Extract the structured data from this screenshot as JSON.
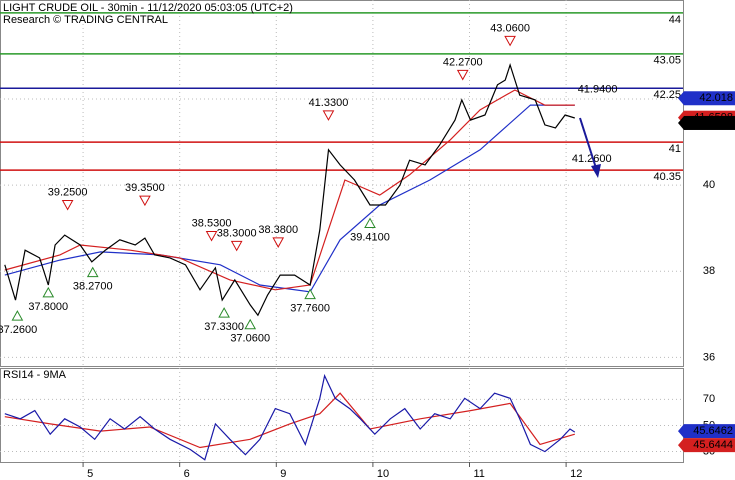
{
  "chart_data": [
    {
      "type": "line",
      "title": "LIGHT CRUDE OIL - 30min - 11/12/2020 05:03:05 (UTC+2)",
      "subtitle": "Research © TRADING CENTRAL",
      "xlim": [
        0.14,
        7.21
      ],
      "ylim": [
        35.8,
        44.3
      ],
      "yticks": [
        36,
        38,
        40,
        42
      ],
      "grid": true,
      "series": [
        {
          "color": "#2030c8",
          "x": [
            0.19,
            0.76,
            1.18,
            1.8,
            2.42,
            2.83,
            3.35,
            3.66,
            4.07,
            4.59,
            5.11,
            5.63,
            6.09
          ],
          "values": [
            37.91,
            38.26,
            38.45,
            38.38,
            38.15,
            37.68,
            37.52,
            38.73,
            39.54,
            40.12,
            40.82,
            41.86,
            41.86
          ]
        },
        {
          "color": "#d42020",
          "x": [
            0.19,
            0.76,
            0.97,
            1.49,
            2.0,
            2.52,
            2.99,
            3.35,
            3.71,
            4.07,
            4.38,
            4.8,
            5.11,
            5.47,
            5.78,
            6.09
          ],
          "values": [
            38.03,
            38.38,
            38.61,
            38.49,
            38.31,
            37.8,
            37.57,
            37.68,
            40.12,
            39.77,
            40.24,
            41.05,
            41.75,
            42.21,
            41.86,
            41.86
          ]
        },
        {
          "color": "#000000",
          "x": [
            0.19,
            0.3,
            0.4,
            0.55,
            0.64,
            0.71,
            0.81,
            0.97,
            1.09,
            1.23,
            1.38,
            1.54,
            1.64,
            1.74,
            1.9,
            2.06,
            2.21,
            2.37,
            2.44,
            2.57,
            2.73,
            2.81,
            2.91,
            3.04,
            3.19,
            3.35,
            3.45,
            3.54,
            3.66,
            3.81,
            3.97,
            4.13,
            4.28,
            4.38,
            4.54,
            4.69,
            4.85,
            4.92,
            5.01,
            5.16,
            5.29,
            5.37,
            5.42,
            5.52,
            5.68,
            5.78,
            5.89,
            5.99,
            6.09
          ],
          "values": [
            38.15,
            37.33,
            38.49,
            38.31,
            37.68,
            38.61,
            38.84,
            38.61,
            38.22,
            38.49,
            38.73,
            38.61,
            38.77,
            38.38,
            38.31,
            38.15,
            37.57,
            38.08,
            37.33,
            37.8,
            37.22,
            36.98,
            37.45,
            37.91,
            37.91,
            37.68,
            38.96,
            40.82,
            40.47,
            40.12,
            39.54,
            39.54,
            40.0,
            40.58,
            40.47,
            40.93,
            41.51,
            41.98,
            41.51,
            41.63,
            42.33,
            42.44,
            42.79,
            42.09,
            41.98,
            41.4,
            41.33,
            41.63,
            41.56
          ]
        }
      ],
      "levels": [
        {
          "value": 44,
          "color": "#2a9a2a"
        },
        {
          "value": 43.05,
          "color": "#2a9a2a"
        },
        {
          "value": 42.25,
          "color": "#1a1a9a"
        },
        {
          "value": 41,
          "color": "#d01010"
        },
        {
          "value": 40.35,
          "color": "#d01010"
        }
      ],
      "annotations": [
        {
          "x": 0.32,
          "value": 37.26,
          "label": "37.2600",
          "kind": "low"
        },
        {
          "x": 0.64,
          "value": 37.8,
          "label": "37.8000",
          "kind": "low"
        },
        {
          "x": 0.84,
          "value": 39.25,
          "label": "39.2500",
          "kind": "high"
        },
        {
          "x": 1.1,
          "value": 38.27,
          "label": "38.2700",
          "kind": "low"
        },
        {
          "x": 1.64,
          "value": 39.35,
          "label": "39.3500",
          "kind": "high"
        },
        {
          "x": 2.33,
          "value": 38.53,
          "label": "38.5300",
          "kind": "high"
        },
        {
          "x": 2.46,
          "value": 37.33,
          "label": "37.3300",
          "kind": "low"
        },
        {
          "x": 2.59,
          "value": 38.3,
          "label": "38.3000",
          "kind": "high"
        },
        {
          "x": 2.73,
          "value": 37.06,
          "label": "37.0600",
          "kind": "low"
        },
        {
          "x": 3.02,
          "value": 38.38,
          "label": "38.3800",
          "kind": "high"
        },
        {
          "x": 3.35,
          "value": 37.76,
          "label": "37.7600",
          "kind": "low"
        },
        {
          "x": 3.54,
          "value": 41.33,
          "label": "41.3300",
          "kind": "high"
        },
        {
          "x": 3.97,
          "value": 39.41,
          "label": "39.4100",
          "kind": "low"
        },
        {
          "x": 4.93,
          "value": 42.27,
          "label": "42.2700",
          "kind": "high"
        },
        {
          "x": 5.42,
          "value": 43.06,
          "label": "43.0600",
          "kind": "high"
        },
        {
          "x": 6.12,
          "value": 41.94,
          "label": "41.9400",
          "kind": "target-high"
        },
        {
          "x": 6.06,
          "value": 41.26,
          "label": "41.2600",
          "kind": "target-low"
        }
      ],
      "price_tags": [
        {
          "value": 42.018,
          "color": "#2030c8"
        },
        {
          "value": 41.6598,
          "color": "#d42020"
        },
        {
          "value": 41.63,
          "color": "#000000"
        }
      ]
    },
    {
      "type": "line",
      "title": "RSI14 - 9MA",
      "xlim": [
        0.14,
        7.21
      ],
      "ylim": [
        22,
        94
      ],
      "yticks": [
        30,
        50,
        70
      ],
      "grid": true,
      "xticks": [
        {
          "value": 1,
          "label": "5"
        },
        {
          "value": 2,
          "label": "6"
        },
        {
          "value": 3,
          "label": "9"
        },
        {
          "value": 4,
          "label": "10"
        },
        {
          "value": 5,
          "label": "11"
        },
        {
          "value": 6,
          "label": "12"
        }
      ],
      "series": [
        {
          "color": "#d42020",
          "x": [
            0.19,
            0.66,
            1.18,
            1.69,
            2.21,
            2.73,
            3.14,
            3.45,
            3.66,
            3.97,
            4.49,
            5.01,
            5.42,
            5.73,
            6.09
          ],
          "values": [
            56.7,
            51.2,
            45.7,
            48.8,
            33.1,
            39.4,
            51.2,
            59.0,
            74.7,
            47.3,
            55.1,
            61.4,
            66.9,
            35.5,
            43.3
          ]
        },
        {
          "color": "#1a1aa8",
          "x": [
            0.19,
            0.35,
            0.5,
            0.66,
            0.81,
            0.97,
            1.12,
            1.28,
            1.43,
            1.59,
            1.74,
            1.9,
            2.11,
            2.26,
            2.37,
            2.52,
            2.68,
            2.83,
            2.99,
            3.14,
            3.3,
            3.45,
            3.5,
            3.61,
            3.76,
            3.87,
            4.02,
            4.18,
            4.33,
            4.49,
            4.64,
            4.8,
            4.95,
            5.11,
            5.26,
            5.42,
            5.52,
            5.63,
            5.78,
            5.94,
            6.04,
            6.09
          ],
          "values": [
            59.0,
            55.1,
            61.4,
            43.3,
            55.1,
            48.8,
            39.4,
            55.1,
            47.3,
            56.7,
            47.3,
            39.4,
            31.6,
            23.7,
            51.2,
            39.4,
            27.6,
            39.4,
            62.9,
            59.0,
            35.5,
            70.8,
            88.0,
            70.8,
            62.9,
            55.1,
            43.3,
            55.1,
            62.9,
            47.3,
            59.0,
            55.1,
            70.8,
            62.9,
            74.7,
            70.8,
            55.1,
            35.5,
            30.0,
            39.4,
            47.3,
            44.9
          ]
        }
      ],
      "price_tags": [
        {
          "value": 45.6462,
          "color": "#2030c8"
        },
        {
          "value": 45.6444,
          "color": "#d42020"
        }
      ]
    }
  ]
}
